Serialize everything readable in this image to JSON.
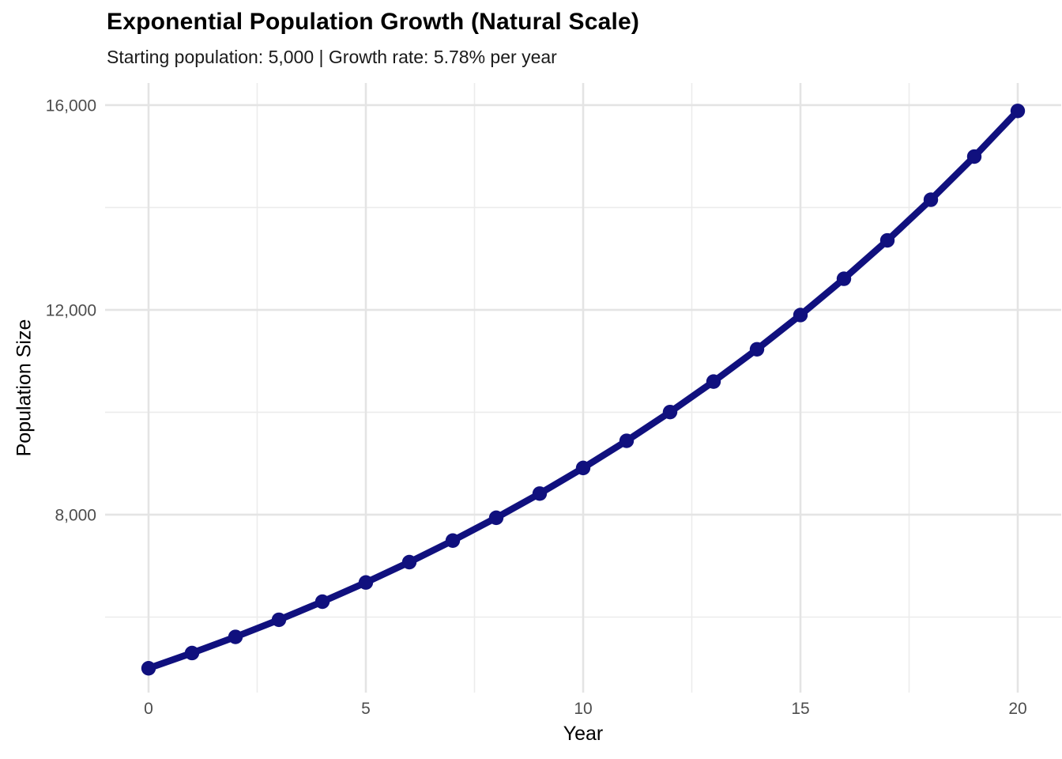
{
  "chart_data": {
    "type": "line",
    "title": "Exponential Population Growth (Natural Scale)",
    "subtitle": "Starting population: 5,000 | Growth rate: 5.78% per year",
    "xlabel": "Year",
    "ylabel": "Population Size",
    "x": [
      0,
      1,
      2,
      3,
      4,
      5,
      6,
      7,
      8,
      9,
      10,
      11,
      12,
      13,
      14,
      15,
      16,
      17,
      18,
      19,
      20
    ],
    "series": [
      {
        "name": "Population",
        "values": [
          5000,
          5298,
          5613,
          5947,
          6301,
          6676,
          7073,
          7494,
          7940,
          8412,
          8913,
          9443,
          10005,
          10600,
          11231,
          11900,
          12608,
          13358,
          14153,
          14995,
          15887
        ]
      }
    ],
    "x_ticks": {
      "major": [
        0,
        5,
        10,
        15,
        20
      ],
      "labels": [
        "0",
        "5",
        "10",
        "15",
        "20"
      ],
      "minor": [
        2.5,
        7.5,
        12.5,
        17.5
      ]
    },
    "y_ticks": {
      "major": [
        8000,
        12000,
        16000
      ],
      "labels": [
        "8,000",
        "12,000",
        "16,000"
      ],
      "minor": [
        6000,
        10000,
        14000
      ]
    },
    "xlim": [
      -1,
      21
    ],
    "ylim": [
      4525,
      16432
    ],
    "grid": "major and minor gridlines, light gray, no axis lines, no tick marks",
    "legend": "none",
    "marker": "filled circle on every data point",
    "colors": {
      "line": "#10107E",
      "point": "#10107E",
      "grid_major": "#E4E4E4",
      "grid_minor": "#ECECEC",
      "tick_label": "#4D4D4D",
      "title": "#000000",
      "subtitle": "#1A1A1A",
      "background": "#FFFFFF"
    }
  }
}
